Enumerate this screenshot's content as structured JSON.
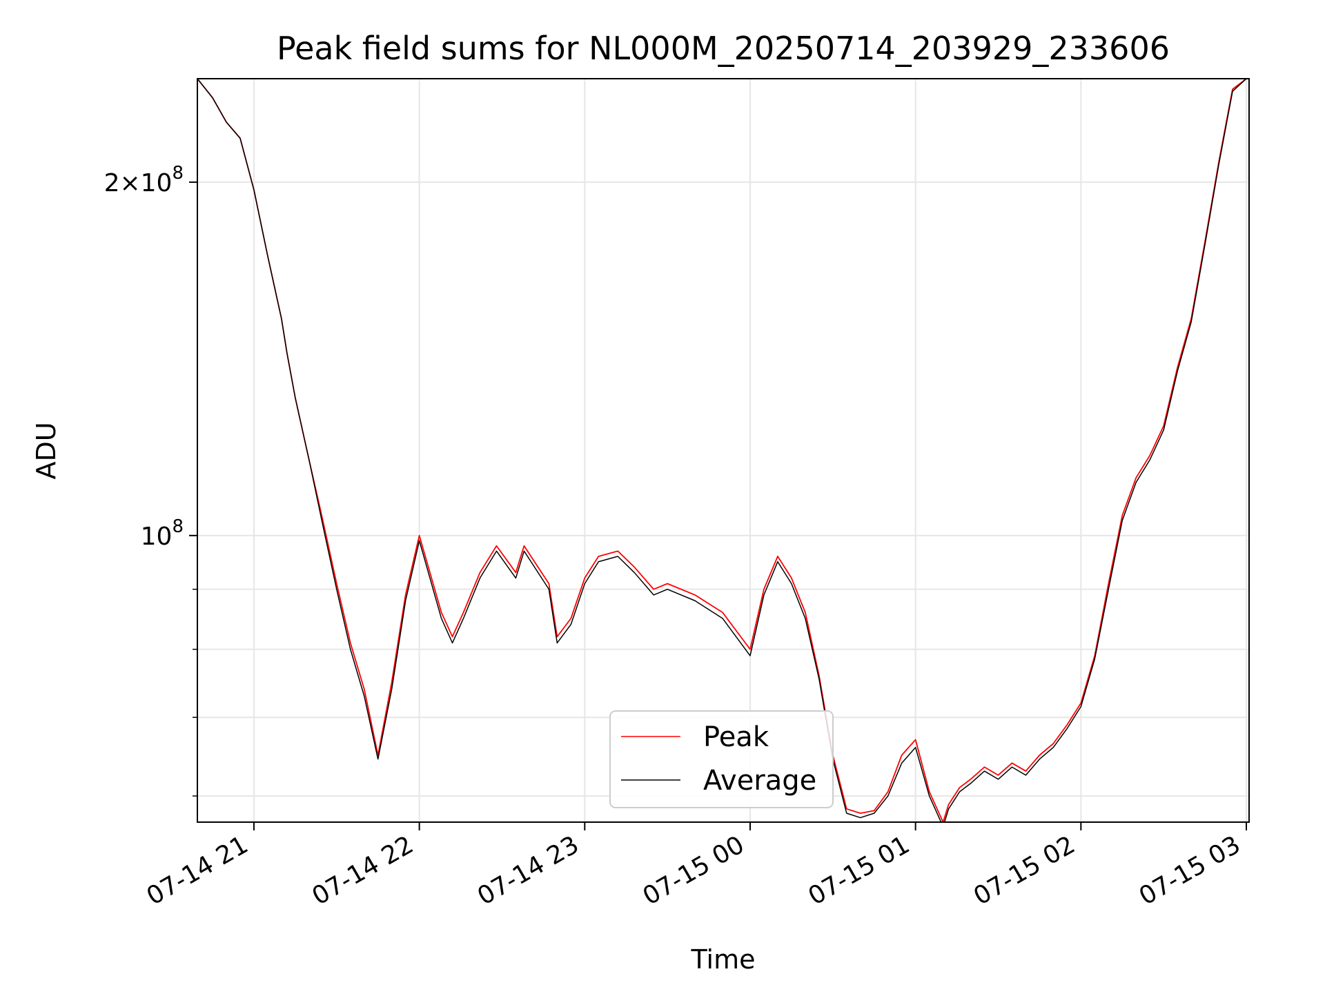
{
  "chart_data": {
    "type": "line",
    "title": "Peak field sums for NL000M_20250714_203929_233606",
    "xlabel": "Time",
    "ylabel": "ADU",
    "yscale": "log",
    "ylim": [
      57000000,
      245000000
    ],
    "xlim": [
      "2025-07-14 20:39:29",
      "2025-07-15 03:01:00"
    ],
    "grid": true,
    "legend_position": "lower center",
    "colors": {
      "Peak": "#ff0000",
      "Average": "#000000"
    },
    "x_ticks": [
      {
        "value": "2025-07-14 21:00",
        "label": "07-14 21"
      },
      {
        "value": "2025-07-14 22:00",
        "label": "07-14 22"
      },
      {
        "value": "2025-07-14 23:00",
        "label": "07-14 23"
      },
      {
        "value": "2025-07-15 00:00",
        "label": "07-15 00"
      },
      {
        "value": "2025-07-15 01:00",
        "label": "07-15 01"
      },
      {
        "value": "2025-07-15 02:00",
        "label": "07-15 02"
      },
      {
        "value": "2025-07-15 03:00",
        "label": "07-15 03"
      }
    ],
    "y_ticks": [
      {
        "value": 100000000,
        "base": "10",
        "exponent": "8",
        "mantissa": ""
      },
      {
        "value": 200000000,
        "base": "10",
        "exponent": "8",
        "mantissa": "2"
      }
    ],
    "y_minor_ticks": [
      60000000,
      70000000,
      80000000,
      90000000
    ],
    "x": [
      "2025-07-14 20:39:29",
      "2025-07-14 20:45",
      "2025-07-14 20:50",
      "2025-07-14 20:55",
      "2025-07-14 21:00",
      "2025-07-14 21:05",
      "2025-07-14 21:10",
      "2025-07-14 21:12",
      "2025-07-14 21:15",
      "2025-07-14 21:20",
      "2025-07-14 21:25",
      "2025-07-14 21:30",
      "2025-07-14 21:35",
      "2025-07-14 21:40",
      "2025-07-14 21:45",
      "2025-07-14 21:50",
      "2025-07-14 21:55",
      "2025-07-14 22:00",
      "2025-07-14 22:05",
      "2025-07-14 22:08",
      "2025-07-14 22:12",
      "2025-07-14 22:16",
      "2025-07-14 22:22",
      "2025-07-14 22:28",
      "2025-07-14 22:35",
      "2025-07-14 22:38",
      "2025-07-14 22:47",
      "2025-07-14 22:50",
      "2025-07-14 22:55",
      "2025-07-14 23:00",
      "2025-07-14 23:05",
      "2025-07-14 23:12",
      "2025-07-14 23:18",
      "2025-07-14 23:25",
      "2025-07-14 23:30",
      "2025-07-14 23:40",
      "2025-07-14 23:50",
      "2025-07-15 00:00",
      "2025-07-15 00:05",
      "2025-07-15 00:10",
      "2025-07-15 00:15",
      "2025-07-15 00:20",
      "2025-07-15 00:25",
      "2025-07-15 00:30",
      "2025-07-15 00:35",
      "2025-07-15 00:40",
      "2025-07-15 00:45",
      "2025-07-15 00:50",
      "2025-07-15 00:55",
      "2025-07-15 01:00",
      "2025-07-15 01:05",
      "2025-07-15 01:10",
      "2025-07-15 01:12",
      "2025-07-15 01:14",
      "2025-07-15 01:16",
      "2025-07-15 01:20",
      "2025-07-15 01:25",
      "2025-07-15 01:30",
      "2025-07-15 01:35",
      "2025-07-15 01:40",
      "2025-07-15 01:45",
      "2025-07-15 01:50",
      "2025-07-15 01:55",
      "2025-07-15 02:00",
      "2025-07-15 02:05",
      "2025-07-15 02:10",
      "2025-07-15 02:15",
      "2025-07-15 02:20",
      "2025-07-15 02:25",
      "2025-07-15 02:30",
      "2025-07-15 02:35",
      "2025-07-15 02:40",
      "2025-07-15 02:45",
      "2025-07-15 02:50",
      "2025-07-15 02:55",
      "2025-07-15 03:00"
    ],
    "series": [
      {
        "name": "Peak",
        "values": [
          245000000,
          236000000,
          225000000,
          218000000,
          197000000,
          173000000,
          153000000,
          143000000,
          131000000,
          116000000,
          103000000,
          91000000,
          81000000,
          74000000,
          65000000,
          75000000,
          89000000,
          100000000,
          91000000,
          86000000,
          82000000,
          86000000,
          93000000,
          98000000,
          93000000,
          98000000,
          91000000,
          82000000,
          85000000,
          92000000,
          96000000,
          97000000,
          94000000,
          90000000,
          91000000,
          89000000,
          86000000,
          80000000,
          90000000,
          96000000,
          92000000,
          86000000,
          76000000,
          65000000,
          58500000,
          58000000,
          58300000,
          60500000,
          65000000,
          67000000,
          60500000,
          57000000,
          59000000,
          60000000,
          61000000,
          62000000,
          63500000,
          62500000,
          64000000,
          63000000,
          65000000,
          66500000,
          69000000,
          72000000,
          79000000,
          91000000,
          104000000,
          112000000,
          117000000,
          124000000,
          139000000,
          153000000,
          178000000,
          208000000,
          240000000,
          245000000
        ]
      },
      {
        "name": "Average",
        "values": [
          245000000,
          236000000,
          225000000,
          218000000,
          197000000,
          173000000,
          153000000,
          143000000,
          131000000,
          116000000,
          102000000,
          90000000,
          80000000,
          73000000,
          64500000,
          74000000,
          88000000,
          99000000,
          90000000,
          85000000,
          81000000,
          85000000,
          92000000,
          97000000,
          92000000,
          97000000,
          90000000,
          81000000,
          84000000,
          91000000,
          95000000,
          96000000,
          93000000,
          89000000,
          90000000,
          88000000,
          85000000,
          79000000,
          89000000,
          95000000,
          91000000,
          85000000,
          75500000,
          64500000,
          58000000,
          57500000,
          58000000,
          60000000,
          64000000,
          66000000,
          60000000,
          56500000,
          58500000,
          59500000,
          60500000,
          61500000,
          63000000,
          62000000,
          63500000,
          62500000,
          64500000,
          66000000,
          68500000,
          71500000,
          78500000,
          90000000,
          103000000,
          111000000,
          116000000,
          123000000,
          138000000,
          152000000,
          177000000,
          207000000,
          239000000,
          245000000
        ]
      }
    ]
  }
}
